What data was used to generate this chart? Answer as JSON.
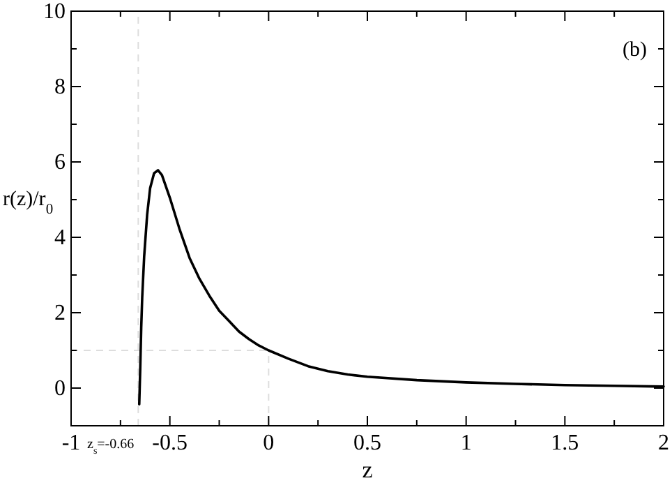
{
  "chart_data": {
    "type": "line",
    "xlabel": "z",
    "ylabel": "r(z)/r$_{0}$",
    "annotations": [
      "(b)"
    ],
    "x": [
      -0.655,
      -0.65,
      -0.645,
      -0.64,
      -0.63,
      -0.615,
      -0.6,
      -0.58,
      -0.56,
      -0.54,
      -0.5,
      -0.45,
      -0.4,
      -0.35,
      -0.3,
      -0.25,
      -0.2,
      -0.15,
      -0.1,
      -0.05,
      0,
      0.1,
      0.2,
      0.3,
      0.4,
      0.5,
      0.75,
      1,
      1.25,
      1.5,
      1.75,
      2
    ],
    "series": [
      {
        "color": "#000000",
        "values": [
          -0.43,
          0.5,
          1.6,
          2.4,
          3.5,
          4.6,
          5.3,
          5.7,
          5.78,
          5.65,
          5.05,
          4.2,
          3.45,
          2.9,
          2.45,
          2.05,
          1.78,
          1.5,
          1.3,
          1.13,
          1.0,
          0.78,
          0.58,
          0.45,
          0.36,
          0.3,
          0.21,
          0.15,
          0.11,
          0.08,
          0.06,
          0.04
        ]
      }
    ],
    "xlim": [
      -1,
      2
    ],
    "ylim": [
      -1,
      10
    ],
    "xticks": [
      -1,
      {
        "value": -0.75,
        "label": null
      },
      -0.5,
      {
        "value": -0.25,
        "label": null
      },
      0,
      {
        "value": 0.25,
        "label": null
      },
      0.5,
      {
        "value": 0.75,
        "label": null
      },
      1,
      {
        "value": 1.25,
        "label": null
      },
      1.5,
      {
        "value": 1.75,
        "label": null
      },
      2
    ],
    "yticks": [
      0,
      {
        "value": 1,
        "label": null
      },
      2,
      {
        "value": 3,
        "label": null
      },
      4,
      {
        "value": 5,
        "label": null
      },
      6,
      {
        "value": 7,
        "label": null
      },
      8,
      {
        "value": 9,
        "label": null
      },
      10
    ],
    "ref_lines": [
      {
        "axis": "x",
        "value": -0.66,
        "label": "z$_{s}$=-0.66",
        "color": "#dddddd",
        "line_style": "dashed"
      },
      {
        "axis": "x",
        "value": 0,
        "color": "#dddddd",
        "line_style": "dashed"
      },
      {
        "axis": "y",
        "value": 1,
        "color": "#dddddd",
        "line_style": "dashed"
      }
    ],
    "grid": false,
    "marker": "none",
    "line_style": "solid"
  }
}
